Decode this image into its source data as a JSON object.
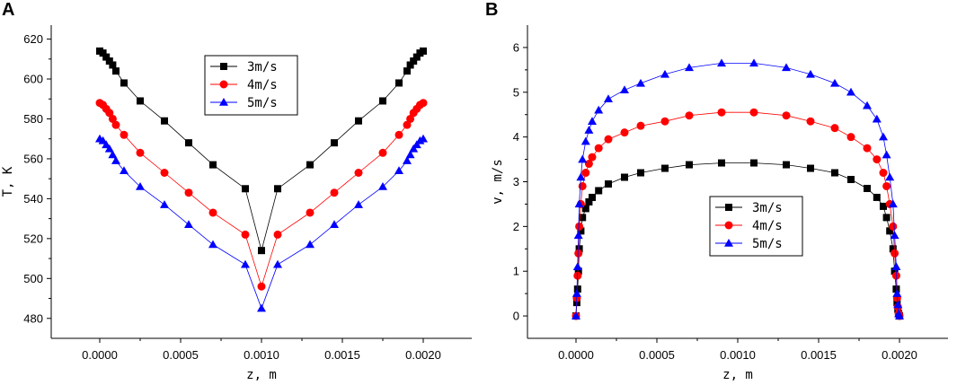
{
  "chart_data": [
    {
      "panel": "A",
      "type": "line",
      "title": "",
      "xlabel": "z, m",
      "ylabel": "T, K",
      "xlim": [
        -0.0003,
        0.0023
      ],
      "ylim": [
        470,
        627
      ],
      "xticks": [
        0.0,
        0.0005,
        0.001,
        0.0015,
        0.002
      ],
      "xtick_labels": [
        "0.0000",
        "0.0005",
        "0.0010",
        "0.0015",
        "0.0020"
      ],
      "yticks": [
        480,
        500,
        520,
        540,
        560,
        580,
        600,
        620
      ],
      "ytick_labels": [
        "480",
        "500",
        "520",
        "540",
        "560",
        "580",
        "600",
        "620"
      ],
      "legend_position": "top-center",
      "x": [
        0,
        2e-05,
        4e-05,
        6e-05,
        8e-05,
        0.0001,
        0.00015,
        0.00025,
        0.0004,
        0.00055,
        0.0007,
        0.0009,
        0.001,
        0.0011,
        0.0013,
        0.00145,
        0.0016,
        0.00175,
        0.00185,
        0.0019,
        0.00192,
        0.00194,
        0.00196,
        0.00198,
        0.002
      ],
      "series": [
        {
          "name": "3m/s",
          "color": "#000000",
          "marker": "square",
          "values": [
            614,
            613,
            611,
            609,
            607,
            604,
            598,
            589,
            579,
            568,
            557,
            545,
            514,
            545,
            557,
            568,
            579,
            589,
            598,
            604,
            607,
            609,
            611,
            613,
            614
          ]
        },
        {
          "name": "4m/s",
          "color": "#ff0000",
          "marker": "circle",
          "values": [
            588,
            587,
            585,
            583,
            580,
            577,
            572,
            563,
            553,
            543,
            533,
            522,
            496,
            522,
            533,
            543,
            553,
            563,
            572,
            577,
            580,
            583,
            585,
            587,
            588
          ]
        },
        {
          "name": "5m/s",
          "color": "#0000ff",
          "marker": "triangle",
          "values": [
            570,
            569,
            567,
            565,
            562,
            559,
            554,
            546,
            537,
            527,
            517,
            507,
            485,
            507,
            517,
            527,
            537,
            546,
            554,
            559,
            562,
            565,
            567,
            569,
            570
          ]
        }
      ]
    },
    {
      "panel": "B",
      "type": "line",
      "title": "",
      "xlabel": "z, m",
      "ylabel": "v, m/s",
      "xlim": [
        -0.0003,
        0.0023
      ],
      "ylim": [
        -0.5,
        6.5
      ],
      "xticks": [
        0.0,
        0.0005,
        0.001,
        0.0015,
        0.002
      ],
      "xtick_labels": [
        "0.0000",
        "0.0005",
        "0.0010",
        "0.0015",
        "0.0020"
      ],
      "yticks": [
        0,
        1,
        2,
        3,
        4,
        5,
        6
      ],
      "ytick_labels": [
        "0",
        "1",
        "2",
        "3",
        "4",
        "5",
        "6"
      ],
      "legend_position": "center-right",
      "x": [
        0,
        5e-06,
        1e-05,
        1.5e-05,
        2e-05,
        3e-05,
        4e-05,
        6e-05,
        8e-05,
        0.0001,
        0.00014,
        0.0002,
        0.0003,
        0.0004,
        0.00055,
        0.0007,
        0.0009,
        0.0011,
        0.0013,
        0.00145,
        0.0016,
        0.0017,
        0.0018,
        0.00186,
        0.0019,
        0.00192,
        0.00194,
        0.00196,
        0.00197,
        0.00198,
        0.001985,
        0.00199,
        0.001995,
        0.002
      ],
      "series": [
        {
          "name": "3m/s",
          "color": "#000000",
          "marker": "square",
          "values": [
            0,
            0.3,
            0.6,
            1.0,
            1.5,
            1.9,
            2.2,
            2.4,
            2.55,
            2.65,
            2.8,
            2.95,
            3.1,
            3.2,
            3.3,
            3.38,
            3.42,
            3.42,
            3.38,
            3.3,
            3.2,
            3.05,
            2.85,
            2.65,
            2.45,
            2.2,
            1.9,
            1.5,
            1.0,
            0.6,
            0.3,
            0.15,
            0.05,
            0
          ]
        },
        {
          "name": "4m/s",
          "color": "#ff0000",
          "marker": "circle",
          "values": [
            0,
            0.4,
            0.9,
            1.4,
            2.0,
            2.5,
            2.9,
            3.2,
            3.4,
            3.55,
            3.75,
            3.95,
            4.1,
            4.25,
            4.35,
            4.48,
            4.55,
            4.55,
            4.48,
            4.35,
            4.2,
            4.0,
            3.75,
            3.5,
            3.2,
            2.9,
            2.5,
            2.0,
            1.4,
            0.9,
            0.4,
            0.2,
            0.05,
            0
          ]
        },
        {
          "name": "5m/s",
          "color": "#0000ff",
          "marker": "triangle",
          "values": [
            0,
            0.5,
            1.1,
            1.8,
            2.5,
            3.1,
            3.5,
            3.9,
            4.15,
            4.35,
            4.6,
            4.85,
            5.05,
            5.2,
            5.4,
            5.55,
            5.65,
            5.65,
            5.55,
            5.4,
            5.2,
            5.0,
            4.7,
            4.4,
            4.0,
            3.6,
            3.1,
            2.5,
            1.8,
            1.1,
            0.5,
            0.25,
            0.05,
            0
          ]
        }
      ]
    }
  ]
}
